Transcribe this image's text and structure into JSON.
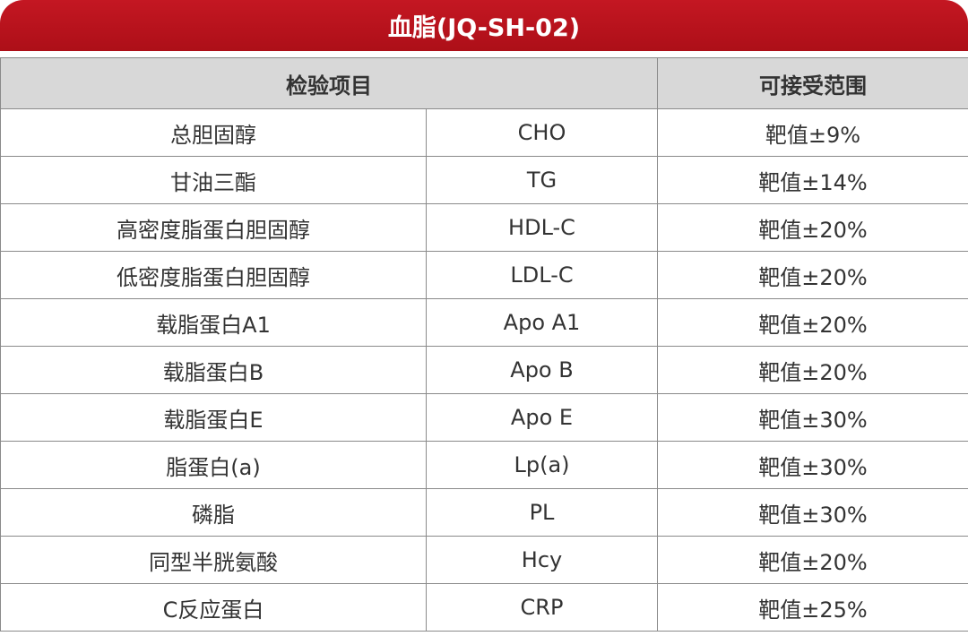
{
  "title": "血脂(JQ-SH-02)",
  "headers": {
    "item": "检验项目",
    "range": "可接受范围"
  },
  "rows": [
    {
      "name": "总胆固醇",
      "code": "CHO",
      "range": "靶值±9%"
    },
    {
      "name": "甘油三酯",
      "code": "TG",
      "range": "靶值±14%"
    },
    {
      "name": "高密度脂蛋白胆固醇",
      "code": "HDL-C",
      "range": "靶值±20%"
    },
    {
      "name": "低密度脂蛋白胆固醇",
      "code": "LDL-C",
      "range": "靶值±20%"
    },
    {
      "name": "载脂蛋白A1",
      "code": "Apo A1",
      "range": "靶值±20%"
    },
    {
      "name": "载脂蛋白B",
      "code": "Apo B",
      "range": "靶值±20%"
    },
    {
      "name": "载脂蛋白E",
      "code": "Apo E",
      "range": "靶值±30%"
    },
    {
      "name": "脂蛋白(a)",
      "code": "Lp(a)",
      "range": "靶值±30%"
    },
    {
      "name": "磷脂",
      "code": "PL",
      "range": "靶值±30%"
    },
    {
      "name": "同型半胱氨酸",
      "code": "Hcy",
      "range": "靶值±20%"
    },
    {
      "name": "C反应蛋白",
      "code": "CRP",
      "range": "靶值±25%"
    }
  ]
}
